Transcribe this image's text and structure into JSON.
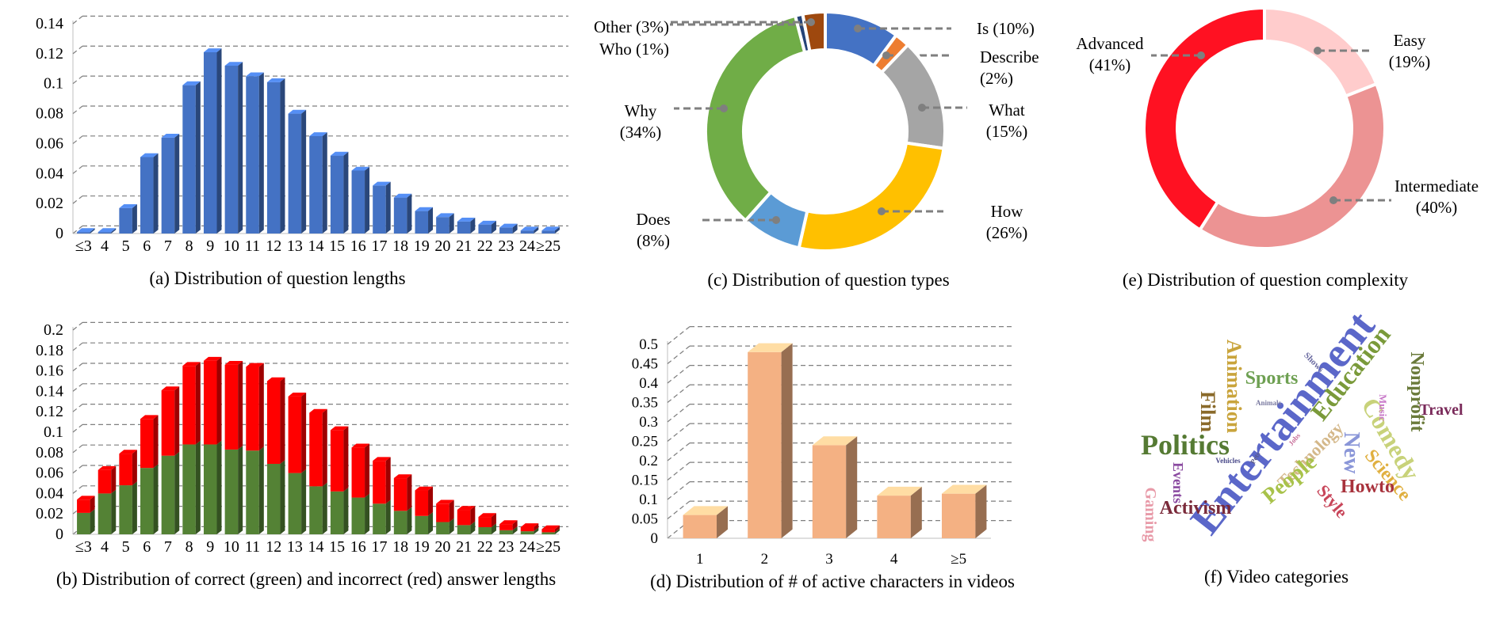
{
  "colors": {
    "blue": "#4472C4",
    "red": "#FF0000",
    "green": "#548235",
    "peach": "#F4B183",
    "grid": "#7f7f7f"
  },
  "chart_data": [
    {
      "id": "a",
      "type": "bar",
      "title": "(a) Distribution of question lengths",
      "categories": [
        "≤3",
        "4",
        "5",
        "6",
        "7",
        "8",
        "9",
        "10",
        "11",
        "12",
        "13",
        "14",
        "15",
        "16",
        "17",
        "18",
        "19",
        "20",
        "21",
        "22",
        "23",
        "24",
        "≥25"
      ],
      "values": [
        0.001,
        0.001,
        0.017,
        0.051,
        0.064,
        0.099,
        0.121,
        0.112,
        0.105,
        0.101,
        0.08,
        0.065,
        0.052,
        0.042,
        0.032,
        0.024,
        0.015,
        0.011,
        0.008,
        0.006,
        0.004,
        0.002,
        0.002
      ],
      "ylim": [
        0,
        0.14
      ],
      "yticks": [
        "0",
        "0.02",
        "0.04",
        "0.06",
        "0.08",
        "0.1",
        "0.12",
        "0.14"
      ],
      "grid": true
    },
    {
      "id": "b",
      "type": "bar",
      "stacked": true,
      "title": "(b) Distribution of correct (green) and incorrect (red) answer lengths",
      "categories": [
        "≤3",
        "4",
        "5",
        "6",
        "7",
        "8",
        "9",
        "10",
        "11",
        "12",
        "13",
        "14",
        "15",
        "16",
        "17",
        "18",
        "19",
        "20",
        "21",
        "22",
        "23",
        "24",
        "≥25"
      ],
      "series": [
        {
          "values": [
            0.021,
            0.04,
            0.048,
            0.065,
            0.077,
            0.088,
            0.088,
            0.083,
            0.082,
            0.069,
            0.06,
            0.047,
            0.042,
            0.036,
            0.03,
            0.023,
            0.018,
            0.012,
            0.009,
            0.007,
            0.004,
            0.003,
            0.002
          ]
        },
        {
          "values": [
            0.013,
            0.023,
            0.031,
            0.048,
            0.064,
            0.077,
            0.082,
            0.083,
            0.082,
            0.081,
            0.075,
            0.072,
            0.06,
            0.049,
            0.042,
            0.032,
            0.025,
            0.018,
            0.015,
            0.01,
            0.006,
            0.004,
            0.003
          ]
        }
      ],
      "ylim": [
        0,
        0.2
      ],
      "yticks": [
        "0",
        "0.02",
        "0.04",
        "0.06",
        "0.08",
        "0.1",
        "0.12",
        "0.14",
        "0.16",
        "0.18",
        "0.2"
      ],
      "grid": true
    },
    {
      "id": "c",
      "type": "pie",
      "donut": true,
      "title": "(c) Distribution of question types",
      "slices": [
        {
          "label": "Is (10%)",
          "value": 10,
          "color": "#4472C4"
        },
        {
          "label": "Describe (2%)",
          "value": 2,
          "color": "#ED7D31"
        },
        {
          "label": "What (15%)",
          "value": 15,
          "color": "#A5A5A5"
        },
        {
          "label": "How (26%)",
          "value": 26,
          "color": "#FFC000"
        },
        {
          "label": "Does (8%)",
          "value": 8,
          "color": "#5B9BD5"
        },
        {
          "label": "Why (34%)",
          "value": 34,
          "color": "#70AD47"
        },
        {
          "label": "Who (1%)",
          "value": 1,
          "color": "#264478"
        },
        {
          "label": "Other (3%)",
          "value": 3,
          "color": "#9E480E"
        }
      ]
    },
    {
      "id": "d",
      "type": "bar",
      "title": "(d) Distribution of # of active characters in videos",
      "categories": [
        "1",
        "2",
        "3",
        "4",
        "≥5"
      ],
      "values": [
        0.06,
        0.48,
        0.24,
        0.11,
        0.115
      ],
      "ylim": [
        0,
        0.5
      ],
      "yticks": [
        "0",
        "0.05",
        "0.1",
        "0.15",
        "0.2",
        "0.25",
        "0.3",
        "0.35",
        "0.4",
        "0.45",
        "0.5"
      ],
      "grid": true
    },
    {
      "id": "e",
      "type": "pie",
      "donut": true,
      "title": "(e) Distribution of question complexity",
      "slices": [
        {
          "label": "Easy (19%)",
          "value": 19,
          "color": "#FFCCCC"
        },
        {
          "label": "Intermediate (40%)",
          "value": 40,
          "color": "#EC9393"
        },
        {
          "label": "Advanced (41%)",
          "value": 41,
          "color": "#FF1122"
        }
      ]
    }
  ],
  "wordcloud": {
    "title": "(f) Video categories",
    "words": [
      {
        "text": "Entertainment",
        "color": "#5b67c9"
      },
      {
        "text": "Politics",
        "color": "#557a33"
      },
      {
        "text": "Education",
        "color": "#7a9a3a"
      },
      {
        "text": "Comedy",
        "color": "#c8d27a"
      },
      {
        "text": "Animation",
        "color": "#c9a43c"
      },
      {
        "text": "Nonprofit",
        "color": "#6a7a3a"
      },
      {
        "text": "Sports",
        "color": "#6ea052"
      },
      {
        "text": "Film",
        "color": "#8a6a2a"
      },
      {
        "text": "Technology",
        "color": "#d4b88a"
      },
      {
        "text": "People",
        "color": "#a8c24a"
      },
      {
        "text": "New",
        "color": "#8a96d8"
      },
      {
        "text": "Science",
        "color": "#e0b040"
      },
      {
        "text": "Howto",
        "color": "#a8323c"
      },
      {
        "text": "Style",
        "color": "#c8465a"
      },
      {
        "text": "Activism",
        "color": "#7a2a3a"
      },
      {
        "text": "Events",
        "color": "#8a4aa0"
      },
      {
        "text": "Gaming",
        "color": "#e89aa8"
      },
      {
        "text": "Travel",
        "color": "#7a2a5a"
      },
      {
        "text": "Music",
        "color": "#c878c8"
      },
      {
        "text": "Shows",
        "color": "#6a6aa0"
      },
      {
        "text": "Animals",
        "color": "#7a7aa0"
      },
      {
        "text": "Vehicles",
        "color": "#4a4a8a"
      },
      {
        "text": "Jobs",
        "color": "#c8709a"
      },
      {
        "text": "Pets",
        "color": "#5a5a8a"
      }
    ]
  }
}
